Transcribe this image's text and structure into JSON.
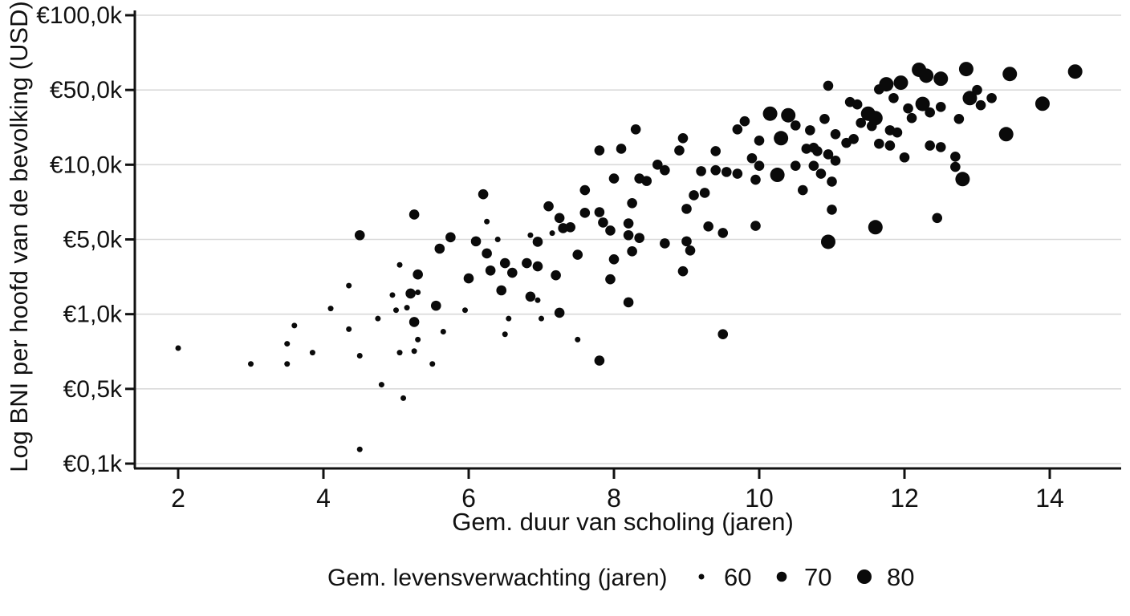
{
  "chart_data": {
    "type": "scatter",
    "title": "",
    "xlabel": "Gem. duur van scholing (jaren)",
    "ylabel": "Log BNI per hoofd van de bevolking (USD)",
    "x_axis": {
      "ticks": [
        2,
        4,
        6,
        8,
        10,
        12,
        14
      ],
      "tick_labels": [
        "2",
        "4",
        "6",
        "8",
        "10",
        "12",
        "14"
      ],
      "range": [
        1.4,
        15.0
      ]
    },
    "y_axis": {
      "scale": "log-segmented",
      "unit": "thousands of USD",
      "ticks": [
        100,
        50,
        10,
        5,
        1,
        0.5,
        0.1
      ],
      "tick_labels": [
        "€100,0k",
        "€50,0k",
        "€10,0k",
        "€5,0k",
        "€1,0k",
        "€0,5k",
        "€0,1k"
      ],
      "note": "labeled ticks are evenly spaced; values log-interpolated between ticks"
    },
    "legend": {
      "title": "Gem. levensverwachting (jaren)",
      "sizes": [
        60,
        70,
        80
      ],
      "size_labels": [
        "60",
        "70",
        "80"
      ]
    },
    "grid": true,
    "point_color": "#0a0a0a",
    "grid_color": "#d9d9d9",
    "axis_color": "#111111",
    "points_format": [
      "mean_years_schooling",
      "gni_per_capita_kUSD",
      "life_expectancy_class"
    ],
    "points": [
      [
        2.0,
        0.73,
        60
      ],
      [
        3.0,
        0.63,
        60
      ],
      [
        3.6,
        0.9,
        60
      ],
      [
        3.5,
        0.76,
        60
      ],
      [
        3.5,
        0.63,
        60
      ],
      [
        3.85,
        0.7,
        60
      ],
      [
        4.1,
        1.13,
        60
      ],
      [
        4.35,
        1.85,
        60
      ],
      [
        4.35,
        0.87,
        60
      ],
      [
        4.5,
        0.68,
        60
      ],
      [
        4.5,
        0.136,
        60
      ],
      [
        4.8,
        0.52,
        60
      ],
      [
        4.75,
        0.96,
        60
      ],
      [
        5.05,
        0.7,
        60
      ],
      [
        4.95,
        1.51,
        60
      ],
      [
        5.0,
        1.09,
        60
      ],
      [
        5.05,
        2.89,
        60
      ],
      [
        5.1,
        0.41,
        60
      ],
      [
        5.15,
        1.15,
        60
      ],
      [
        5.25,
        0.71,
        60
      ],
      [
        5.3,
        0.79,
        60
      ],
      [
        5.3,
        1.6,
        60
      ],
      [
        5.5,
        0.63,
        60
      ],
      [
        5.65,
        0.85,
        60
      ],
      [
        5.95,
        1.09,
        60
      ],
      [
        6.4,
        5.0,
        60
      ],
      [
        6.25,
        5.9,
        60
      ],
      [
        6.5,
        0.83,
        60
      ],
      [
        6.55,
        0.96,
        60
      ],
      [
        6.95,
        1.35,
        60
      ],
      [
        7.0,
        0.96,
        60
      ],
      [
        6.85,
        5.2,
        60
      ],
      [
        7.15,
        5.3,
        60
      ],
      [
        7.5,
        0.79,
        60
      ],
      [
        4.5,
        5.2,
        70
      ],
      [
        5.2,
        1.56,
        70
      ],
      [
        5.25,
        0.93,
        70
      ],
      [
        5.3,
        2.35,
        70
      ],
      [
        5.25,
        6.3,
        70
      ],
      [
        5.55,
        1.2,
        70
      ],
      [
        5.6,
        4.1,
        70
      ],
      [
        5.75,
        5.1,
        70
      ],
      [
        6.0,
        2.16,
        70
      ],
      [
        6.1,
        4.8,
        70
      ],
      [
        6.25,
        3.7,
        70
      ],
      [
        6.2,
        7.6,
        70
      ],
      [
        6.3,
        2.56,
        70
      ],
      [
        6.45,
        1.67,
        70
      ],
      [
        6.5,
        3.0,
        70
      ],
      [
        6.6,
        2.44,
        70
      ],
      [
        6.8,
        3.0,
        70
      ],
      [
        6.85,
        1.46,
        70
      ],
      [
        6.95,
        2.8,
        70
      ],
      [
        6.95,
        4.75,
        70
      ],
      [
        7.1,
        6.8,
        70
      ],
      [
        7.2,
        2.31,
        70
      ],
      [
        7.25,
        6.1,
        70
      ],
      [
        7.3,
        5.55,
        70
      ],
      [
        7.25,
        1.03,
        70
      ],
      [
        7.4,
        5.6,
        70
      ],
      [
        7.5,
        3.6,
        70
      ],
      [
        7.6,
        7.9,
        70
      ],
      [
        7.6,
        6.4,
        70
      ],
      [
        7.8,
        6.44,
        70
      ],
      [
        7.8,
        0.65,
        70
      ],
      [
        7.8,
        13.6,
        70
      ],
      [
        7.85,
        5.85,
        70
      ],
      [
        7.95,
        5.43,
        70
      ],
      [
        8.0,
        3.26,
        70
      ],
      [
        7.95,
        2.12,
        70
      ],
      [
        8.0,
        8.8,
        70
      ],
      [
        8.1,
        14.1,
        70
      ],
      [
        8.2,
        5.8,
        70
      ],
      [
        8.2,
        5.2,
        70
      ],
      [
        8.2,
        1.29,
        70
      ],
      [
        8.25,
        7.0,
        70
      ],
      [
        8.3,
        21.4,
        70
      ],
      [
        8.35,
        8.8,
        70
      ],
      [
        8.35,
        5.07,
        70
      ],
      [
        8.45,
        8.6,
        70
      ],
      [
        8.25,
        3.87,
        70
      ],
      [
        8.6,
        10.0,
        70
      ],
      [
        8.7,
        9.5,
        70
      ],
      [
        8.7,
        4.59,
        70
      ],
      [
        8.95,
        17.7,
        70
      ],
      [
        8.9,
        13.6,
        70
      ],
      [
        8.95,
        2.52,
        70
      ],
      [
        9.0,
        6.64,
        70
      ],
      [
        9.0,
        4.8,
        70
      ],
      [
        9.05,
        3.94,
        70
      ],
      [
        9.1,
        7.53,
        70
      ],
      [
        9.25,
        7.7,
        70
      ],
      [
        9.2,
        9.42,
        70
      ],
      [
        9.3,
        5.64,
        70
      ],
      [
        9.4,
        13.4,
        70
      ],
      [
        9.4,
        9.5,
        70
      ],
      [
        9.55,
        9.35,
        70
      ],
      [
        9.5,
        0.83,
        70
      ],
      [
        9.5,
        5.31,
        70
      ],
      [
        9.7,
        21.4,
        70
      ],
      [
        9.7,
        9.2,
        70
      ],
      [
        9.8,
        25.5,
        70
      ],
      [
        9.9,
        11.5,
        70
      ],
      [
        9.95,
        8.7,
        70
      ],
      [
        9.95,
        5.67,
        70
      ],
      [
        10.0,
        9.9,
        70
      ],
      [
        10.0,
        16.8,
        70
      ],
      [
        10.5,
        23.3,
        70
      ],
      [
        10.5,
        9.9,
        70
      ],
      [
        10.6,
        7.9,
        70
      ],
      [
        10.65,
        14.1,
        70
      ],
      [
        10.7,
        21.0,
        70
      ],
      [
        10.75,
        14.4,
        70
      ],
      [
        10.8,
        13.4,
        70
      ],
      [
        10.75,
        9.9,
        70
      ],
      [
        10.85,
        9.2,
        70
      ],
      [
        11.0,
        8.55,
        70
      ],
      [
        10.9,
        26.8,
        70
      ],
      [
        10.95,
        52,
        70
      ],
      [
        10.95,
        12.5,
        70
      ],
      [
        11.0,
        6.59,
        70
      ],
      [
        11.05,
        19.3,
        70
      ],
      [
        11.05,
        10.9,
        70
      ],
      [
        11.2,
        16.0,
        70
      ],
      [
        11.25,
        38.6,
        70
      ],
      [
        11.3,
        17.4,
        70
      ],
      [
        11.35,
        36.6,
        70
      ],
      [
        11.4,
        24.6,
        70
      ],
      [
        11.55,
        23.0,
        70
      ],
      [
        11.65,
        50.3,
        70
      ],
      [
        11.8,
        21.0,
        70
      ],
      [
        11.65,
        15.7,
        70
      ],
      [
        11.85,
        42,
        70
      ],
      [
        11.9,
        20.0,
        70
      ],
      [
        11.8,
        15.1,
        70
      ],
      [
        12.0,
        11.7,
        70
      ],
      [
        12.05,
        33.6,
        70
      ],
      [
        12.1,
        27.3,
        70
      ],
      [
        12.35,
        30.8,
        70
      ],
      [
        12.35,
        15.1,
        70
      ],
      [
        12.5,
        34.7,
        70
      ],
      [
        12.5,
        14.6,
        70
      ],
      [
        12.45,
        6.1,
        70
      ],
      [
        12.7,
        9.8,
        70
      ],
      [
        12.7,
        11.9,
        70
      ],
      [
        12.75,
        26.8,
        70
      ],
      [
        13.0,
        50,
        70
      ],
      [
        13.05,
        36,
        70
      ],
      [
        13.2,
        42,
        70
      ],
      [
        10.15,
        30,
        80
      ],
      [
        10.25,
        9.1,
        80
      ],
      [
        10.3,
        17.7,
        80
      ],
      [
        10.4,
        29,
        80
      ],
      [
        10.95,
        4.75,
        80
      ],
      [
        11.5,
        30,
        80
      ],
      [
        11.6,
        27.3,
        80
      ],
      [
        11.6,
        5.6,
        80
      ],
      [
        11.75,
        52.7,
        80
      ],
      [
        11.95,
        53.5,
        80
      ],
      [
        12.2,
        60.3,
        80
      ],
      [
        12.25,
        37,
        80
      ],
      [
        12.3,
        57.1,
        80
      ],
      [
        12.5,
        55.5,
        80
      ],
      [
        12.8,
        8.75,
        80
      ],
      [
        12.85,
        60.7,
        80
      ],
      [
        12.9,
        42,
        80
      ],
      [
        13.4,
        19.3,
        80
      ],
      [
        13.45,
        58,
        80
      ],
      [
        13.9,
        37.2,
        80
      ],
      [
        14.35,
        59.3,
        80
      ]
    ]
  }
}
